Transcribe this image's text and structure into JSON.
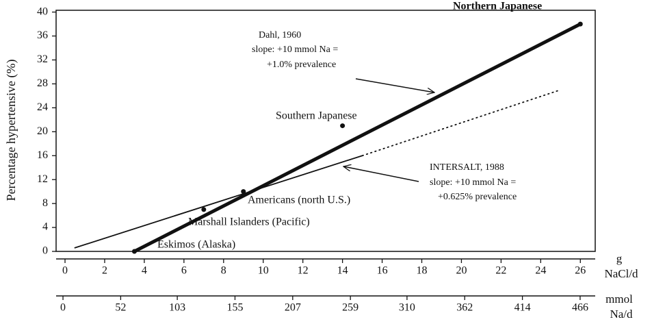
{
  "chart_data": {
    "type": "scatter",
    "ylabel": "Percentage hypertensive (%)",
    "xlabel": [
      "g",
      "NaCl/d"
    ],
    "x2label": [
      "mmol",
      "Na/d"
    ],
    "xlim": [
      -0.45,
      26.75
    ],
    "xticks": [
      0,
      2,
      4,
      6,
      8,
      10,
      12,
      14,
      16,
      18,
      20,
      22,
      24,
      26
    ],
    "x2lim": [
      -6.2,
      479.6
    ],
    "x2ticks": [
      0,
      52,
      103,
      155,
      207,
      259,
      310,
      362,
      414,
      466
    ],
    "ylim": [
      0,
      40.3
    ],
    "yticks": [
      0,
      4,
      8,
      12,
      16,
      20,
      24,
      28,
      32,
      36,
      40
    ],
    "points": {
      "x": [
        3.5,
        7,
        9,
        14,
        26
      ],
      "y": [
        0,
        7,
        10,
        21,
        38
      ],
      "labels": [
        "Eskimos (Alaska)",
        "Marshall Islanders (Pacific)",
        "Americans (north U.S.)",
        "Southern  Japanese",
        "Northern Japanese"
      ]
    },
    "lines": [
      {
        "x": [
          3.5,
          26
        ],
        "y": [
          0,
          38
        ],
        "style": "thick"
      },
      {
        "x": [
          0.5,
          15
        ],
        "y": [
          0.6,
          16
        ],
        "style": "thin"
      },
      {
        "x": [
          15,
          25
        ],
        "y": [
          16,
          27
        ],
        "style": "dotted"
      }
    ],
    "annotations": [
      [
        "Dahl, 1960",
        "slope: +10 mmol Na =",
        "+1.0% prevalence"
      ],
      [
        "INTERSALT, 1988",
        "slope: +10 mmol Na =",
        "+0.625% prevalence"
      ]
    ]
  }
}
